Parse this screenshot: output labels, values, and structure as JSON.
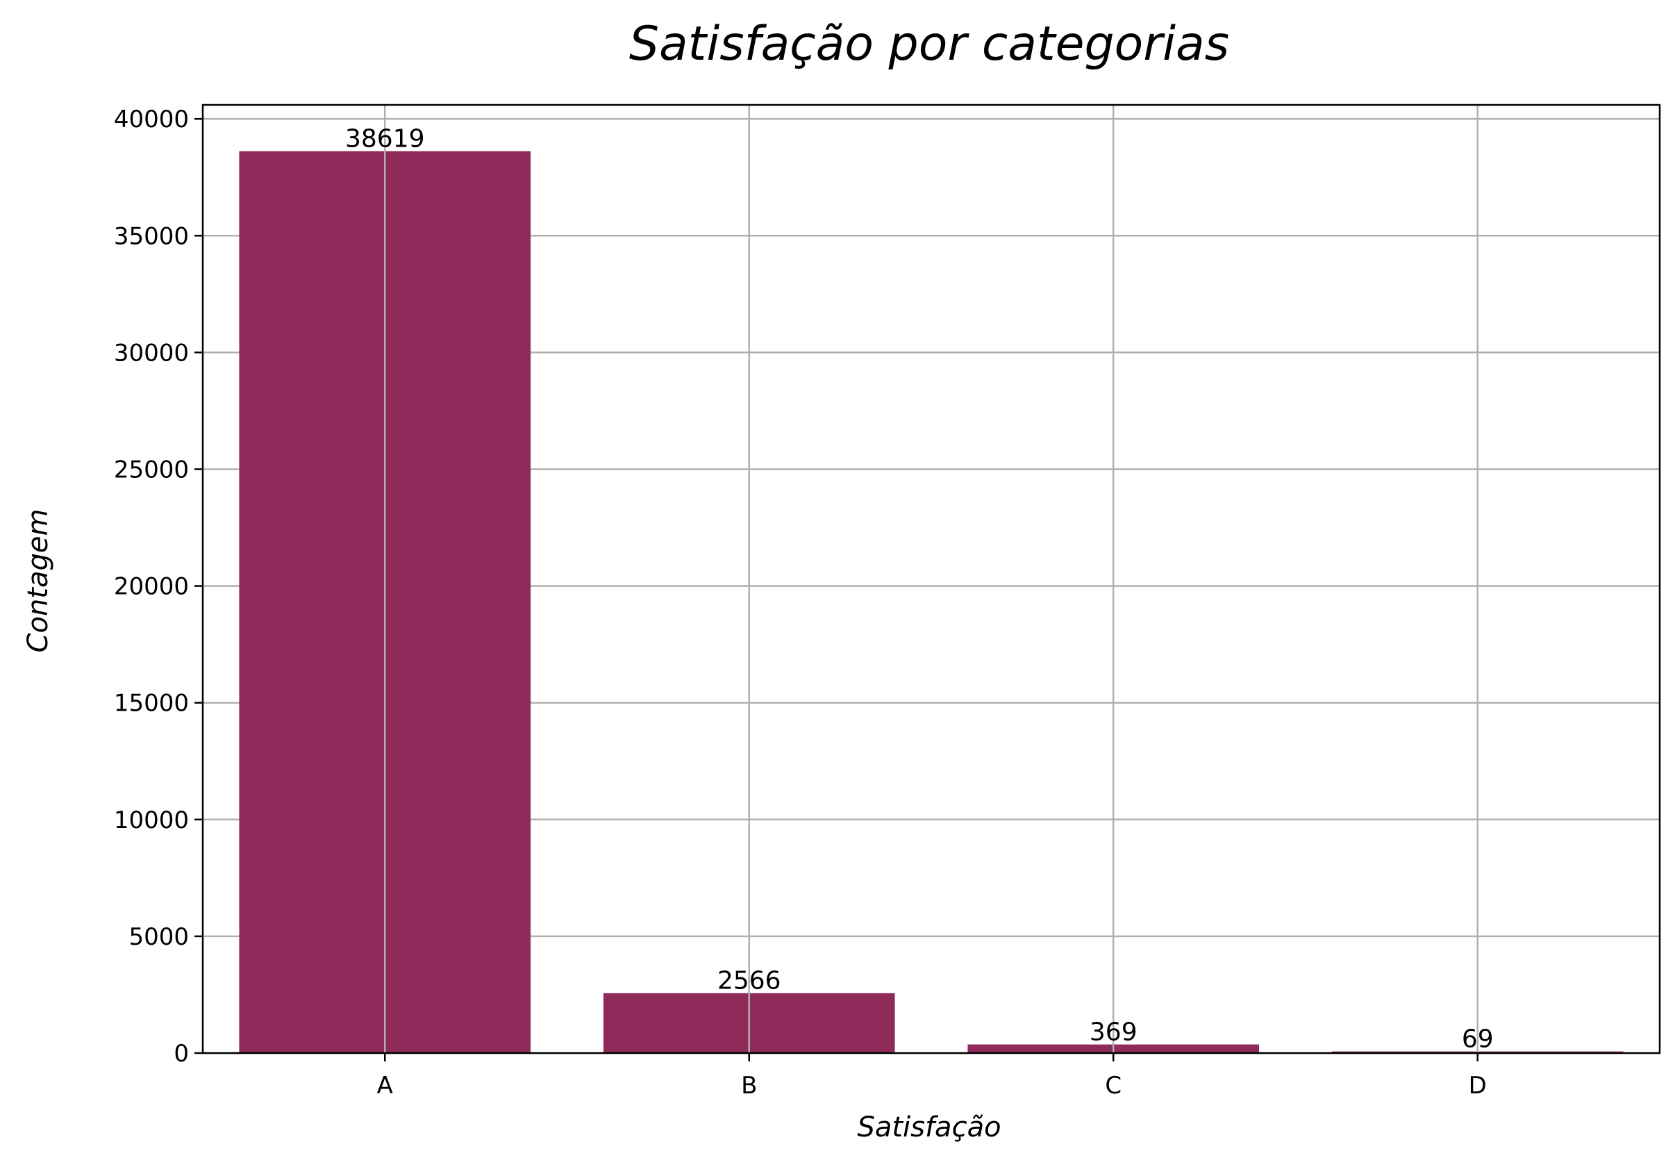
{
  "chart_data": {
    "type": "bar",
    "title": "Satisfação por categorias",
    "xlabel": "Satisfação",
    "ylabel": "Contagem",
    "categories": [
      "A",
      "B",
      "C",
      "D"
    ],
    "values": [
      38619,
      2566,
      369,
      69
    ],
    "data_labels": [
      "38619",
      "2566",
      "369",
      "69"
    ],
    "ylim": [
      0,
      40600
    ],
    "yticks": [
      0,
      5000,
      10000,
      15000,
      20000,
      25000,
      30000,
      35000,
      40000
    ],
    "ytick_labels": [
      "0",
      "5000",
      "10000",
      "15000",
      "20000",
      "25000",
      "30000",
      "35000",
      "40000"
    ],
    "grid": true,
    "legend": "none",
    "bar_color": "#8e2b5a",
    "grid_color": "#b0b0b0"
  }
}
